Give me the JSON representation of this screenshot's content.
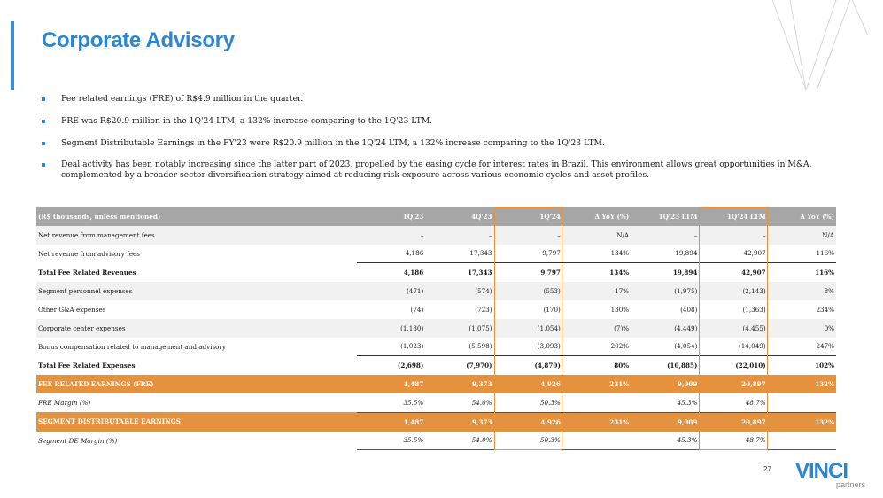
{
  "title": "Corporate Advisory",
  "page_number": "27",
  "logo": {
    "text": "VINCI",
    "subtext": "partners"
  },
  "colors": {
    "accent": "#2b87d3",
    "orange": "#e4923e",
    "header_gray": "#a6a6a6"
  },
  "bullets": [
    "Fee related earnings (FRE) of R$4.9 million in the quarter.",
    "FRE was R$20.9 million in the 1Q'24 LTM, a 132% increase comparing to the 1Q'23 LTM.",
    "Segment Distributable Earnings in the FY'23 were R$20.9 million in the 1Q'24 LTM, a 132% increase comparing to the 1Q'23 LTM.",
    "Deal activity has been notably increasing since the latter part of 2023, propelled by the easing cycle for interest rates in Brazil. This environment allows great opportunities in M&A, complemented by a broader sector diversification strategy aimed at reducing risk exposure across various economic cycles and asset profiles."
  ],
  "table": {
    "headers": [
      "(R$ thousands, unless mentioned)",
      "1Q'23",
      "4Q'23",
      "1Q'24",
      "Δ YoY (%)",
      "1Q'23 LTM",
      "1Q'24 LTM",
      "Δ YoY (%)"
    ],
    "rows": [
      {
        "style": "shade",
        "cells": [
          "Net revenue from management fees",
          "–",
          "–",
          "–",
          "N/A",
          "–",
          "–",
          "N/A"
        ]
      },
      {
        "style": "",
        "cells": [
          "Net revenue from advisory fees",
          "4,186",
          "17,343",
          "9,797",
          "134%",
          "19,894",
          "42,907",
          "116%"
        ]
      },
      {
        "style": "total",
        "cells": [
          "Total Fee Related Revenues",
          "4,186",
          "17,343",
          "9,797",
          "134%",
          "19,894",
          "42,907",
          "116%"
        ]
      },
      {
        "style": "shade",
        "cells": [
          "Segment personnel expenses",
          "(471)",
          "(574)",
          "(553)",
          "17%",
          "(1,975)",
          "(2,143)",
          "8%"
        ]
      },
      {
        "style": "",
        "cells": [
          "Other G&A expenses",
          "(74)",
          "(723)",
          "(170)",
          "130%",
          "(408)",
          "(1,363)",
          "234%"
        ]
      },
      {
        "style": "shade",
        "cells": [
          "Corporate center expenses",
          "(1,130)",
          "(1,075)",
          "(1,054)",
          "(7)%",
          "(4,449)",
          "(4,455)",
          "0%"
        ]
      },
      {
        "style": "",
        "cells": [
          "Bonus compensation related to management and advisory",
          "(1,023)",
          "(5,598)",
          "(3,093)",
          "202%",
          "(4,054)",
          "(14,049)",
          "247%"
        ]
      },
      {
        "style": "total",
        "cells": [
          "Total Fee Related Expenses",
          "(2,698)",
          "(7,970)",
          "(4,870)",
          "80%",
          "(10,885)",
          "(22,010)",
          "102%"
        ]
      },
      {
        "style": "orange",
        "cells": [
          "FEE RELATED EARNINGS (FRE)",
          "1,487",
          "9,373",
          "4,926",
          "231%",
          "9,009",
          "20,897",
          "132%"
        ]
      },
      {
        "style": "italic",
        "cells": [
          "FRE Margin (%)",
          "35.5%",
          "54.0%",
          "50.3%",
          "",
          "45.3%",
          "48.7%",
          ""
        ]
      },
      {
        "style": "orange",
        "cells": [
          "SEGMENT DISTRIBUTABLE EARNINGS",
          "1,487",
          "9,373",
          "4,926",
          "231%",
          "9,009",
          "20,897",
          "132%"
        ]
      },
      {
        "style": "italic",
        "cells": [
          "Segment DE Margin (%)",
          "35.5%",
          "54.0%",
          "50.3%",
          "",
          "45.3%",
          "48.7%",
          ""
        ]
      }
    ]
  }
}
